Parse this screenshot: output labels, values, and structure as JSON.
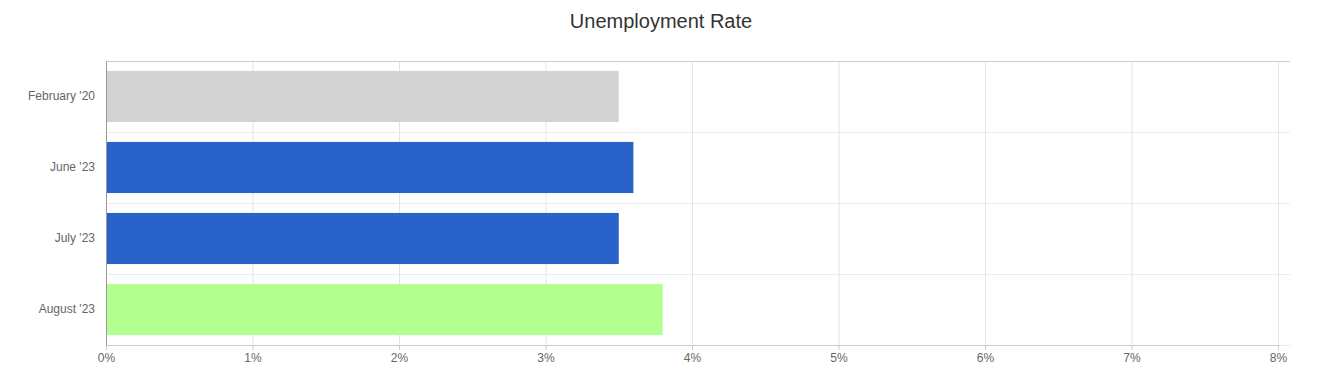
{
  "chart_data": {
    "type": "bar",
    "title": "Unemployment Rate",
    "orientation": "horizontal",
    "categories": [
      "February '20",
      "June '23",
      "July '23",
      "August '23"
    ],
    "values": [
      3.5,
      3.6,
      3.5,
      3.8
    ],
    "colors": [
      "#d3d3d3",
      "#2962c9",
      "#2962c9",
      "#b3ff8f"
    ],
    "xlim": [
      0,
      8
    ],
    "xticks": [
      {
        "value": 0,
        "label": "0%"
      },
      {
        "value": 1,
        "label": "1%"
      },
      {
        "value": 2,
        "label": "2%"
      },
      {
        "value": 3,
        "label": "3%"
      },
      {
        "value": 4,
        "label": "4%"
      },
      {
        "value": 5,
        "label": "5%"
      },
      {
        "value": 6,
        "label": "6%"
      },
      {
        "value": 7,
        "label": "7%"
      },
      {
        "value": 8,
        "label": "8%"
      }
    ],
    "grid": true
  }
}
